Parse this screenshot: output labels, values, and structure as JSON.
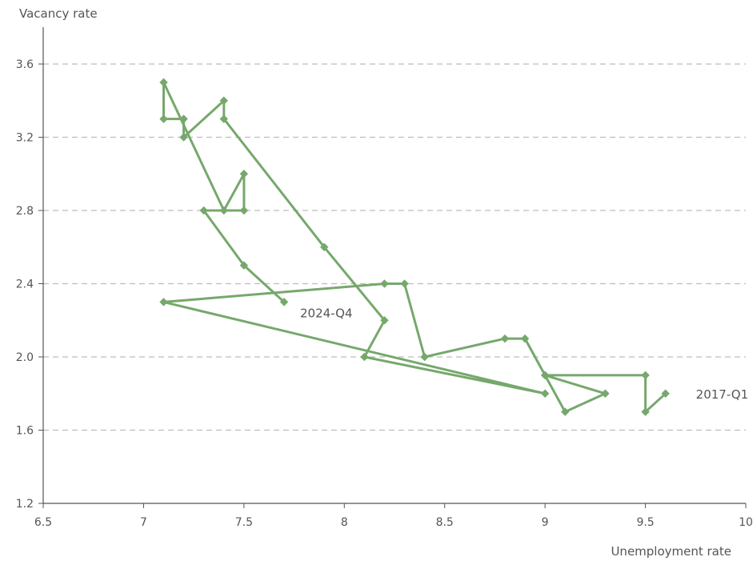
{
  "chart_data": {
    "type": "line",
    "title": "",
    "xlabel": "Unemployment rate",
    "ylabel": "Vacancy rate",
    "xlim": [
      6.5,
      10
    ],
    "ylim": [
      1.2,
      3.8
    ],
    "x_ticks": [
      "6.5",
      "7",
      "7.5",
      "8",
      "8.5",
      "9",
      "9.5",
      "10"
    ],
    "y_ticks": [
      "1.2",
      "1.6",
      "2.0",
      "2.4",
      "2.8",
      "3.2",
      "3.6"
    ],
    "grid": "horizontal dashed",
    "series_color": "#76a86c",
    "series": [
      {
        "points": [
          [
            9.6,
            1.8
          ],
          [
            9.5,
            1.7
          ],
          [
            9.5,
            1.9
          ],
          [
            9.0,
            1.9
          ],
          [
            9.1,
            1.7
          ],
          [
            9.3,
            1.8
          ],
          [
            9.0,
            1.9
          ],
          [
            8.9,
            2.1
          ],
          [
            8.8,
            2.1
          ],
          [
            8.4,
            2.0
          ],
          [
            8.3,
            2.4
          ],
          [
            8.2,
            2.4
          ],
          [
            7.1,
            2.3
          ],
          [
            9.0,
            1.8
          ],
          [
            8.1,
            2.0
          ],
          [
            8.2,
            2.2
          ],
          [
            7.9,
            2.6
          ],
          [
            7.4,
            3.3
          ],
          [
            7.4,
            3.4
          ],
          [
            7.2,
            3.2
          ],
          [
            7.2,
            3.3
          ],
          [
            7.1,
            3.3
          ],
          [
            7.1,
            3.5
          ],
          [
            7.4,
            2.8
          ],
          [
            7.5,
            3.0
          ],
          [
            7.5,
            2.8
          ],
          [
            7.3,
            2.8
          ],
          [
            7.5,
            2.5
          ],
          [
            7.7,
            2.3
          ]
        ]
      }
    ],
    "annotations": [
      {
        "text": "2017-Q1",
        "x": 9.6,
        "y": 1.8
      },
      {
        "text": "2024-Q4",
        "x": 7.7,
        "y": 2.3
      }
    ]
  }
}
